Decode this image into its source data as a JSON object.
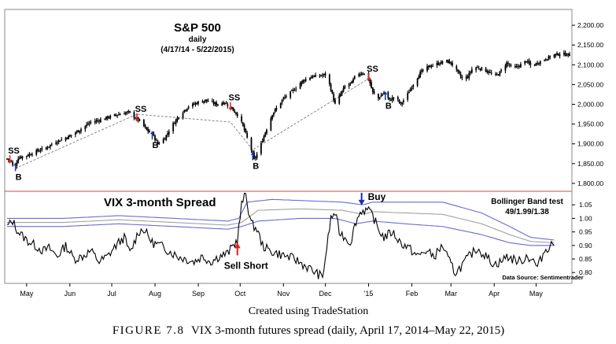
{
  "colors": {
    "axis_border": "#888888",
    "price_bar": "#000000",
    "trendline": "#7a7a7a",
    "separator": "#c0504d",
    "band_upper": "#6a6ad8",
    "band_lower": "#6a6ad8",
    "band_mid": "#a0a0a0",
    "sell_arrow": "#e0201a",
    "buy_arrow": "#1a2fb5"
  },
  "chart_data": [
    {
      "type": "candlestick",
      "title": "S&P 500",
      "subtitle": "daily",
      "date_range": "(4/17/14 - 5/22/2015)",
      "ylim": [
        1780,
        2240
      ],
      "y_ticks": [
        "2,200.00",
        "2,150.00",
        "2,100.00",
        "2,050.00",
        "2,000.00",
        "1,950.00",
        "1,900.00",
        "1,850.00",
        "1,800.00"
      ],
      "y_tick_values": [
        2200,
        2150,
        2100,
        2050,
        2000,
        1950,
        1900,
        1850,
        1800
      ],
      "x_ticks": [
        "May",
        "Jun",
        "Jul",
        "Aug",
        "Sep",
        "Oct",
        "Nov",
        "Dec",
        "'15",
        "Feb",
        "Mar",
        "Apr",
        "May"
      ],
      "x_tick_days": [
        14,
        45,
        75,
        106,
        137,
        167,
        198,
        228,
        259,
        290,
        318,
        349,
        379
      ],
      "x_range_days": [
        0,
        403
      ],
      "close_anchors": [
        [
          0,
          1862
        ],
        [
          3,
          1855
        ],
        [
          5,
          1835
        ],
        [
          8,
          1865
        ],
        [
          14,
          1870
        ],
        [
          20,
          1880
        ],
        [
          28,
          1890
        ],
        [
          35,
          1905
        ],
        [
          45,
          1920
        ],
        [
          52,
          1935
        ],
        [
          60,
          1955
        ],
        [
          66,
          1960
        ],
        [
          75,
          1970
        ],
        [
          80,
          1975
        ],
        [
          87,
          1980
        ],
        [
          96,
          1955
        ],
        [
          100,
          1935
        ],
        [
          104,
          1925
        ],
        [
          108,
          1900
        ],
        [
          113,
          1915
        ],
        [
          118,
          1945
        ],
        [
          124,
          1975
        ],
        [
          130,
          1995
        ],
        [
          137,
          2005
        ],
        [
          142,
          2010
        ],
        [
          150,
          2000
        ],
        [
          156,
          2005
        ],
        [
          162,
          1985
        ],
        [
          166,
          1970
        ],
        [
          169,
          1945
        ],
        [
          172,
          1915
        ],
        [
          175,
          1885
        ],
        [
          177,
          1860
        ],
        [
          180,
          1880
        ],
        [
          184,
          1920
        ],
        [
          190,
          1975
        ],
        [
          198,
          2015
        ],
        [
          205,
          2035
        ],
        [
          212,
          2060
        ],
        [
          218,
          2070
        ],
        [
          224,
          2072
        ],
        [
          228,
          2075
        ],
        [
          231,
          2050
        ],
        [
          235,
          2000
        ],
        [
          238,
          2020
        ],
        [
          242,
          2045
        ],
        [
          247,
          2055
        ],
        [
          250,
          2075
        ],
        [
          255,
          2080
        ],
        [
          259,
          2065
        ],
        [
          262,
          2030
        ],
        [
          266,
          2015
        ],
        [
          270,
          2030
        ],
        [
          274,
          2010
        ],
        [
          278,
          2020
        ],
        [
          282,
          2000
        ],
        [
          286,
          2020
        ],
        [
          290,
          2045
        ],
        [
          296,
          2080
        ],
        [
          302,
          2095
        ],
        [
          308,
          2102
        ],
        [
          314,
          2110
        ],
        [
          318,
          2105
        ],
        [
          322,
          2085
        ],
        [
          326,
          2065
        ],
        [
          330,
          2070
        ],
        [
          334,
          2095
        ],
        [
          340,
          2090
        ],
        [
          346,
          2080
        ],
        [
          349,
          2070
        ],
        [
          353,
          2080
        ],
        [
          358,
          2105
        ],
        [
          363,
          2090
        ],
        [
          368,
          2100
        ],
        [
          372,
          2110
        ],
        [
          376,
          2095
        ],
        [
          380,
          2105
        ],
        [
          386,
          2115
        ],
        [
          392,
          2125
        ],
        [
          397,
          2128
        ],
        [
          403,
          2125
        ]
      ],
      "signals": [
        {
          "label": "SS",
          "day": 2,
          "kind": "sell"
        },
        {
          "label": "B",
          "day": 6,
          "kind": "buy"
        },
        {
          "label": "SS",
          "day": 93,
          "kind": "sell"
        },
        {
          "label": "B",
          "day": 104,
          "kind": "buy"
        },
        {
          "label": "SS",
          "day": 160,
          "kind": "sell"
        },
        {
          "label": "B",
          "day": 176,
          "kind": "buy"
        },
        {
          "label": "SS",
          "day": 259,
          "kind": "sell"
        },
        {
          "label": "B",
          "day": 271,
          "kind": "buy"
        }
      ],
      "trend_line_points": [
        [
          6,
          1838
        ],
        [
          93,
          1975
        ],
        [
          160,
          1955
        ],
        [
          176,
          1885
        ],
        [
          259,
          2065
        ]
      ]
    },
    {
      "type": "line",
      "title": "VIX 3-month Spread",
      "legend_title": "Bollinger Band test",
      "legend_params": "49/1.99/1.38",
      "source": "Data Source: Sentimentrader",
      "ylim": [
        0.76,
        1.1
      ],
      "y_ticks": [
        "1.05",
        "1.00",
        "0.95",
        "0.90",
        "0.85",
        "0.80"
      ],
      "y_tick_values": [
        1.05,
        1.0,
        0.95,
        0.9,
        0.85,
        0.8
      ],
      "series": [
        {
          "name": "VIX 3-month spread",
          "anchors": [
            [
              0,
              0.97
            ],
            [
              4,
              0.99
            ],
            [
              8,
              0.95
            ],
            [
              14,
              0.92
            ],
            [
              20,
              0.9
            ],
            [
              26,
              0.88
            ],
            [
              30,
              0.89
            ],
            [
              36,
              0.86
            ],
            [
              42,
              0.9
            ],
            [
              48,
              0.85
            ],
            [
              54,
              0.86
            ],
            [
              60,
              0.88
            ],
            [
              66,
              0.84
            ],
            [
              72,
              0.86
            ],
            [
              78,
              0.9
            ],
            [
              84,
              0.93
            ],
            [
              88,
              0.87
            ],
            [
              94,
              0.95
            ],
            [
              98,
              0.96
            ],
            [
              104,
              0.91
            ],
            [
              110,
              0.9
            ],
            [
              116,
              0.88
            ],
            [
              122,
              0.86
            ],
            [
              128,
              0.85
            ],
            [
              134,
              0.84
            ],
            [
              140,
              0.86
            ],
            [
              146,
              0.84
            ],
            [
              152,
              0.86
            ],
            [
              158,
              0.87
            ],
            [
              162,
              0.9
            ],
            [
              165,
              0.92
            ],
            [
              168,
              1.05
            ],
            [
              171,
              1.09
            ],
            [
              173,
              1.03
            ],
            [
              175,
              0.98
            ],
            [
              179,
              0.96
            ],
            [
              183,
              0.9
            ],
            [
              188,
              0.88
            ],
            [
              194,
              0.87
            ],
            [
              200,
              0.86
            ],
            [
              206,
              0.85
            ],
            [
              212,
              0.83
            ],
            [
              218,
              0.81
            ],
            [
              224,
              0.79
            ],
            [
              226,
              0.78
            ],
            [
              229,
              0.89
            ],
            [
              232,
              1.0
            ],
            [
              235,
              1.02
            ],
            [
              238,
              0.95
            ],
            [
              242,
              0.93
            ],
            [
              246,
              0.91
            ],
            [
              250,
              0.99
            ],
            [
              254,
              1.03
            ],
            [
              258,
              1.03
            ],
            [
              262,
              1.01
            ],
            [
              266,
              0.96
            ],
            [
              270,
              0.93
            ],
            [
              276,
              0.95
            ],
            [
              282,
              0.91
            ],
            [
              288,
              0.89
            ],
            [
              294,
              0.86
            ],
            [
              300,
              0.88
            ],
            [
              306,
              0.86
            ],
            [
              312,
              0.9
            ],
            [
              316,
              0.85
            ],
            [
              321,
              0.8
            ],
            [
              325,
              0.82
            ],
            [
              331,
              0.86
            ],
            [
              337,
              0.89
            ],
            [
              343,
              0.86
            ],
            [
              349,
              0.83
            ],
            [
              354,
              0.84
            ],
            [
              358,
              0.86
            ],
            [
              362,
              0.85
            ],
            [
              368,
              0.84
            ],
            [
              372,
              0.86
            ],
            [
              376,
              0.85
            ],
            [
              380,
              0.82
            ],
            [
              385,
              0.88
            ],
            [
              389,
              0.9
            ],
            [
              392,
              0.91
            ]
          ]
        },
        {
          "name": "Upper band",
          "anchors": [
            [
              0,
              1.0
            ],
            [
              40,
              1.0
            ],
            [
              80,
              1.01
            ],
            [
              120,
              1.0
            ],
            [
              158,
              0.99
            ],
            [
              166,
              1.0
            ],
            [
              172,
              1.06
            ],
            [
              190,
              1.07
            ],
            [
              240,
              1.06
            ],
            [
              255,
              1.05
            ],
            [
              262,
              1.06
            ],
            [
              285,
              1.06
            ],
            [
              312,
              1.06
            ],
            [
              340,
              1.02
            ],
            [
              360,
              0.97
            ],
            [
              375,
              0.93
            ],
            [
              392,
              0.92
            ]
          ]
        },
        {
          "name": "Lower band",
          "anchors": [
            [
              0,
              0.97
            ],
            [
              40,
              0.97
            ],
            [
              80,
              0.98
            ],
            [
              120,
              0.97
            ],
            [
              158,
              0.96
            ],
            [
              168,
              0.97
            ],
            [
              180,
              0.99
            ],
            [
              210,
              1.0
            ],
            [
              235,
              1.0
            ],
            [
              250,
              0.98
            ],
            [
              262,
              0.99
            ],
            [
              285,
              0.98
            ],
            [
              312,
              0.97
            ],
            [
              340,
              0.94
            ],
            [
              360,
              0.91
            ],
            [
              375,
              0.9
            ],
            [
              392,
              0.9
            ]
          ]
        },
        {
          "name": "Middle band",
          "anchors": [
            [
              0,
              0.985
            ],
            [
              40,
              0.985
            ],
            [
              80,
              0.995
            ],
            [
              120,
              0.985
            ],
            [
              158,
              0.975
            ],
            [
              168,
              0.985
            ],
            [
              180,
              1.03
            ],
            [
              210,
              1.035
            ],
            [
              240,
              1.03
            ],
            [
              255,
              1.015
            ],
            [
              262,
              1.025
            ],
            [
              285,
              1.02
            ],
            [
              312,
              1.015
            ],
            [
              340,
              0.98
            ],
            [
              360,
              0.94
            ],
            [
              375,
              0.915
            ],
            [
              392,
              0.91
            ]
          ]
        }
      ],
      "annotations": [
        {
          "label": "Sell Short",
          "day": 165,
          "kind": "sell"
        },
        {
          "label": "Buy",
          "day": 254,
          "kind": "buy"
        }
      ]
    }
  ],
  "caption": {
    "credit": "Created using TradeStation",
    "figure_label": "FIGURE 7.8",
    "figure_text": "VIX 3-month futures spread (daily, April 17, 2014–May 22, 2015)"
  }
}
